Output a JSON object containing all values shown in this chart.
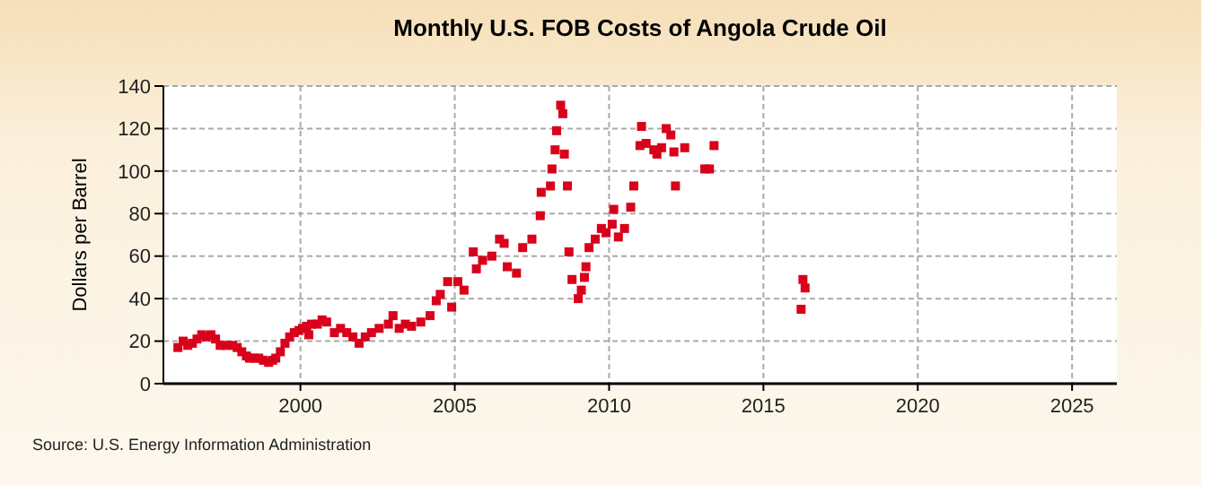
{
  "chart_data": {
    "type": "scatter",
    "title": "Monthly U.S. FOB Costs of Angola Crude Oil",
    "ylabel": "Dollars per Barrel",
    "annotations": [
      "Source: U.S. Energy Information Administration"
    ],
    "x": [
      1996.03,
      1996.2,
      1996.35,
      1996.5,
      1996.65,
      1996.8,
      1996.95,
      1997.1,
      1997.25,
      1997.4,
      1997.6,
      1997.8,
      1997.95,
      1998.1,
      1998.25,
      1998.35,
      1998.5,
      1998.65,
      1998.8,
      1998.97,
      1999.1,
      1999.2,
      1999.35,
      1999.5,
      1999.65,
      1999.8,
      1999.95,
      2000.07,
      2000.2,
      2000.27,
      2000.36,
      2000.55,
      2000.7,
      2000.85,
      2001.1,
      2001.3,
      2001.5,
      2001.7,
      2001.9,
      2002.1,
      2002.3,
      2002.55,
      2002.85,
      2003.0,
      2003.2,
      2003.4,
      2003.6,
      2003.9,
      2004.2,
      2004.4,
      2004.53,
      2004.77,
      2004.9,
      2005.1,
      2005.3,
      2005.6,
      2005.7,
      2005.9,
      2006.2,
      2006.45,
      2006.6,
      2006.7,
      2007.0,
      2007.2,
      2007.5,
      2007.77,
      2007.8,
      2008.1,
      2008.15,
      2008.25,
      2008.3,
      2008.43,
      2008.5,
      2008.55,
      2008.65,
      2008.7,
      2008.8,
      2009.0,
      2009.1,
      2009.2,
      2009.25,
      2009.35,
      2009.55,
      2009.75,
      2009.9,
      2010.1,
      2010.15,
      2010.3,
      2010.5,
      2010.7,
      2010.8,
      2011.0,
      2011.05,
      2011.2,
      2011.45,
      2011.55,
      2011.7,
      2011.85,
      2012.0,
      2012.1,
      2012.15,
      2012.45,
      2013.1,
      2013.25,
      2013.4,
      2016.22,
      2016.28,
      2016.35
    ],
    "series": [
      {
        "color": "#d9001b",
        "values": [
          17,
          20,
          18,
          19,
          21,
          23,
          22,
          23,
          21,
          18,
          18,
          18,
          17,
          15,
          13,
          12,
          12,
          12,
          11,
          10,
          11,
          12,
          15,
          19,
          22,
          24,
          25,
          26,
          27,
          23,
          28,
          28,
          30,
          29,
          24,
          26,
          24,
          22,
          19,
          22,
          24,
          26,
          28,
          32,
          26,
          28,
          27,
          29,
          32,
          39,
          42,
          48,
          36,
          48,
          44,
          62,
          54,
          58,
          60,
          68,
          66,
          55,
          52,
          64,
          68,
          79,
          90,
          93,
          101,
          110,
          119,
          131,
          127,
          108,
          93,
          62,
          49,
          40,
          44,
          50,
          55,
          64,
          68,
          73,
          71,
          75,
          82,
          69,
          73,
          83,
          93,
          112,
          121,
          113,
          110,
          108,
          111,
          120,
          117,
          109,
          93,
          111,
          101,
          101,
          112,
          35,
          49,
          45
        ]
      }
    ],
    "xlim": [
      1995.56,
      2026.45
    ],
    "xticks": [
      2000,
      2005,
      2010,
      2015,
      2020,
      2025
    ],
    "ylim": [
      0,
      140
    ],
    "yticks": [
      0,
      20,
      40,
      60,
      80,
      100,
      120,
      140
    ],
    "grid": true,
    "marker": "square"
  }
}
